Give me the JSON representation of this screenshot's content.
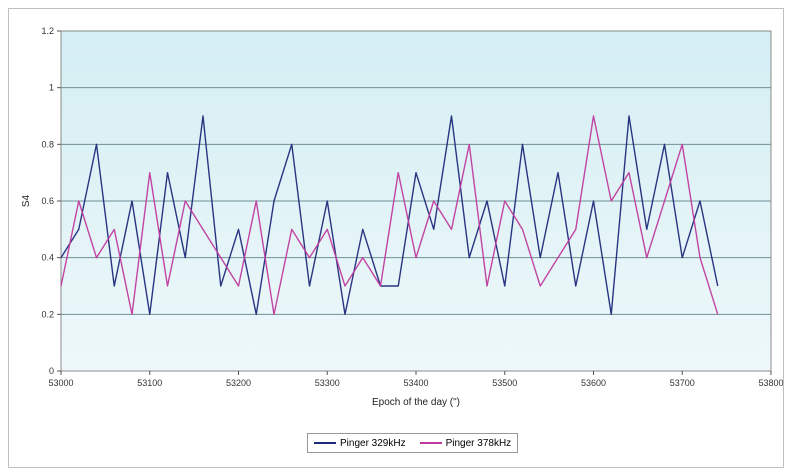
{
  "chart_data": {
    "type": "line",
    "title": "",
    "xlabel": "Epoch of the day (\")",
    "ylabel": "S4",
    "xlim": [
      53000,
      53800
    ],
    "ylim": [
      0,
      1.2
    ],
    "x_ticks": [
      53000,
      53100,
      53200,
      53300,
      53400,
      53500,
      53600,
      53700,
      53800
    ],
    "x_tick_labels": [
      "53000",
      "53100",
      "53200",
      "53300",
      "53400",
      "53500",
      "53600",
      "53700",
      "53800"
    ],
    "y_ticks": [
      0,
      0.2,
      0.4,
      0.6,
      0.8,
      1,
      1.2
    ],
    "y_tick_labels": [
      "0",
      "0.2",
      "0.4",
      "0.6",
      "0.8",
      "1",
      "1.2"
    ],
    "grid": "horizontal",
    "legend_position": "bottom",
    "background_gradient": [
      "#d4eef3",
      "#eef8fa"
    ],
    "series": [
      {
        "name": "Pinger 329kHz",
        "color": "#1f2a7a",
        "x": [
          53000,
          53020,
          53040,
          53060,
          53080,
          53100,
          53120,
          53140,
          53160,
          53180,
          53200,
          53220,
          53240,
          53260,
          53280,
          53300,
          53320,
          53340,
          53360,
          53380,
          53400,
          53420,
          53440,
          53460,
          53480,
          53500,
          53520,
          53540,
          53560,
          53580,
          53600,
          53620,
          53640,
          53660,
          53680,
          53700,
          53720,
          53740
        ],
        "y": [
          0.4,
          0.5,
          0.8,
          0.3,
          0.6,
          0.2,
          0.7,
          0.4,
          0.9,
          0.3,
          0.5,
          0.2,
          0.6,
          0.8,
          0.3,
          0.6,
          0.2,
          0.5,
          0.3,
          0.3,
          0.7,
          0.5,
          0.9,
          0.4,
          0.6,
          0.3,
          0.8,
          0.4,
          0.7,
          0.3,
          0.6,
          0.2,
          0.9,
          0.5,
          0.8,
          0.4,
          0.6,
          0.3
        ]
      },
      {
        "name": "Pinger 378kHz",
        "color": "#c03a9e",
        "x": [
          53000,
          53020,
          53040,
          53060,
          53080,
          53100,
          53120,
          53140,
          53160,
          53180,
          53200,
          53220,
          53240,
          53260,
          53280,
          53300,
          53320,
          53340,
          53360,
          53380,
          53400,
          53420,
          53440,
          53460,
          53480,
          53500,
          53520,
          53540,
          53560,
          53580,
          53600,
          53620,
          53640,
          53660,
          53680,
          53700,
          53720,
          53740
        ],
        "y": [
          0.3,
          0.6,
          0.4,
          0.5,
          0.2,
          0.7,
          0.3,
          0.6,
          0.5,
          0.4,
          0.3,
          0.6,
          0.2,
          0.5,
          0.4,
          0.5,
          0.3,
          0.4,
          0.3,
          0.7,
          0.4,
          0.6,
          0.5,
          0.8,
          0.3,
          0.6,
          0.5,
          0.3,
          0.4,
          0.5,
          0.9,
          0.6,
          0.7,
          0.4,
          0.6,
          0.8,
          0.4,
          0.2
        ]
      }
    ]
  }
}
